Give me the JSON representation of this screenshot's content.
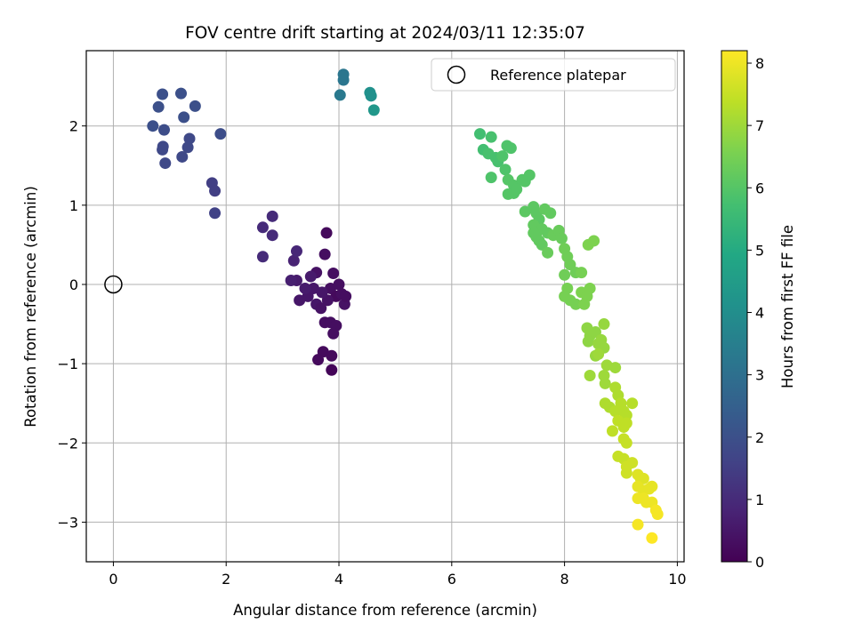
{
  "chart_data": {
    "type": "scatter",
    "title": "FOV centre drift starting at 2024/03/11 12:35:07",
    "xlabel": "Angular distance from reference (arcmin)",
    "ylabel": "Rotation from reference (arcmin)",
    "xlim": [
      -0.48,
      10.12
    ],
    "ylim": [
      -3.5,
      2.95
    ],
    "xticks": [
      0,
      2,
      4,
      6,
      8,
      10
    ],
    "yticks": [
      -3,
      -2,
      -1,
      0,
      1,
      2
    ],
    "grid": true,
    "legend": {
      "placement": "top-right",
      "entries": [
        "Reference platepar"
      ]
    },
    "reference_point": {
      "x": 0,
      "y": 0
    },
    "colorbar": {
      "label": "Hours from first FF file",
      "range": [
        0,
        8.2
      ],
      "ticks": [
        0,
        1,
        2,
        3,
        4,
        5,
        6,
        7,
        8
      ],
      "colormap": "viridis"
    },
    "points": [
      [
        3.78,
        0.65,
        0.2
      ],
      [
        3.75,
        0.38,
        0.3
      ],
      [
        3.9,
        0.14,
        0.3
      ],
      [
        3.6,
        0.15,
        0.4
      ],
      [
        3.85,
        -0.05,
        0.3
      ],
      [
        3.95,
        -0.15,
        0.2
      ],
      [
        4.05,
        -0.12,
        0.3
      ],
      [
        4.1,
        -0.25,
        0.4
      ],
      [
        3.8,
        -0.2,
        0.4
      ],
      [
        3.7,
        -0.1,
        0.5
      ],
      [
        3.55,
        -0.05,
        0.5
      ],
      [
        3.5,
        0.1,
        0.6
      ],
      [
        3.45,
        -0.15,
        0.5
      ],
      [
        3.6,
        -0.25,
        0.5
      ],
      [
        3.68,
        -0.3,
        0.4
      ],
      [
        3.75,
        -0.48,
        0.3
      ],
      [
        3.85,
        -0.48,
        0.3
      ],
      [
        3.95,
        -0.52,
        0.3
      ],
      [
        3.9,
        -0.62,
        0.3
      ],
      [
        3.72,
        -0.85,
        0.2
      ],
      [
        3.63,
        -0.95,
        0.2
      ],
      [
        3.87,
        -0.9,
        0.2
      ],
      [
        3.87,
        -1.08,
        0.1
      ],
      [
        3.3,
        -0.2,
        0.5
      ],
      [
        3.25,
        0.05,
        0.6
      ],
      [
        3.15,
        0.05,
        0.7
      ],
      [
        3.2,
        0.3,
        0.8
      ],
      [
        3.25,
        0.42,
        0.9
      ],
      [
        3.4,
        -0.05,
        0.6
      ],
      [
        4.0,
        0.0,
        0.3
      ],
      [
        4.12,
        -0.15,
        0.3
      ],
      [
        2.65,
        0.35,
        1.0
      ],
      [
        2.65,
        0.72,
        1.0
      ],
      [
        2.82,
        0.62,
        1.0
      ],
      [
        2.82,
        0.86,
        1.0
      ],
      [
        1.75,
        1.28,
        1.5
      ],
      [
        1.8,
        1.18,
        1.5
      ],
      [
        1.8,
        0.9,
        1.6
      ],
      [
        0.7,
        2.0,
        2.0
      ],
      [
        0.8,
        2.24,
        2.0
      ],
      [
        0.87,
        2.4,
        2.0
      ],
      [
        1.2,
        2.41,
        2.0
      ],
      [
        1.45,
        2.25,
        2.0
      ],
      [
        1.25,
        2.11,
        2.0
      ],
      [
        0.9,
        1.95,
        1.9
      ],
      [
        1.9,
        1.9,
        1.9
      ],
      [
        1.35,
        1.84,
        1.8
      ],
      [
        0.88,
        1.74,
        1.8
      ],
      [
        0.87,
        1.7,
        1.8
      ],
      [
        1.32,
        1.73,
        1.8
      ],
      [
        1.22,
        1.61,
        1.8
      ],
      [
        0.92,
        1.53,
        1.8
      ],
      [
        4.08,
        2.65,
        3.2
      ],
      [
        4.08,
        2.58,
        3.2
      ],
      [
        4.02,
        2.39,
        3.3
      ],
      [
        4.55,
        2.42,
        4.1
      ],
      [
        4.57,
        2.38,
        4.1
      ],
      [
        4.62,
        2.2,
        4.3
      ],
      [
        6.5,
        1.9,
        5.7
      ],
      [
        6.56,
        1.7,
        5.7
      ],
      [
        6.65,
        1.65,
        5.8
      ],
      [
        6.7,
        1.86,
        5.8
      ],
      [
        6.78,
        1.6,
        5.8
      ],
      [
        6.82,
        1.55,
        5.8
      ],
      [
        6.9,
        1.62,
        5.9
      ],
      [
        6.95,
        1.45,
        5.9
      ],
      [
        6.7,
        1.35,
        5.9
      ],
      [
        6.98,
        1.75,
        5.9
      ],
      [
        7.05,
        1.72,
        5.9
      ],
      [
        7.0,
        1.32,
        6.0
      ],
      [
        7.1,
        1.25,
        6.0
      ],
      [
        7.1,
        1.15,
        6.0
      ],
      [
        7.0,
        1.14,
        6.0
      ],
      [
        7.15,
        1.2,
        6.0
      ],
      [
        7.3,
        1.3,
        6.0
      ],
      [
        7.38,
        1.38,
        6.0
      ],
      [
        7.25,
        1.32,
        6.0
      ],
      [
        7.3,
        0.92,
        6.1
      ],
      [
        7.45,
        0.98,
        6.1
      ],
      [
        7.5,
        0.9,
        6.1
      ],
      [
        7.55,
        0.82,
        6.1
      ],
      [
        7.45,
        0.75,
        6.2
      ],
      [
        7.6,
        0.7,
        6.2
      ],
      [
        7.65,
        0.95,
        6.2
      ],
      [
        7.75,
        0.9,
        6.2
      ],
      [
        7.5,
        0.6,
        6.2
      ],
      [
        7.55,
        0.55,
        6.2
      ],
      [
        7.7,
        0.65,
        6.2
      ],
      [
        7.6,
        0.5,
        6.2
      ],
      [
        7.8,
        0.62,
        6.3
      ],
      [
        7.9,
        0.68,
        6.3
      ],
      [
        7.95,
        0.58,
        6.3
      ],
      [
        7.7,
        0.4,
        6.3
      ],
      [
        7.45,
        0.65,
        6.2
      ],
      [
        8.0,
        0.45,
        6.4
      ],
      [
        8.05,
        0.35,
        6.4
      ],
      [
        8.0,
        0.12,
        6.4
      ],
      [
        8.1,
        0.25,
        6.4
      ],
      [
        8.2,
        0.15,
        6.4
      ],
      [
        8.3,
        0.15,
        6.5
      ],
      [
        8.05,
        -0.05,
        6.5
      ],
      [
        8.0,
        -0.15,
        6.5
      ],
      [
        8.1,
        -0.2,
        6.5
      ],
      [
        8.2,
        -0.25,
        6.5
      ],
      [
        8.3,
        -0.1,
        6.6
      ],
      [
        8.4,
        -0.15,
        6.6
      ],
      [
        8.35,
        -0.25,
        6.6
      ],
      [
        8.45,
        -0.05,
        6.6
      ],
      [
        8.42,
        0.5,
        6.6
      ],
      [
        8.52,
        0.55,
        6.6
      ],
      [
        8.4,
        -0.55,
        6.8
      ],
      [
        8.45,
        -0.65,
        6.8
      ],
      [
        8.42,
        -0.72,
        6.8
      ],
      [
        8.55,
        -0.6,
        6.8
      ],
      [
        8.6,
        -0.75,
        6.9
      ],
      [
        8.7,
        -0.5,
        6.9
      ],
      [
        8.65,
        -0.7,
        6.9
      ],
      [
        8.7,
        -0.8,
        6.9
      ],
      [
        8.55,
        -0.9,
        6.9
      ],
      [
        8.6,
        -0.88,
        7.0
      ],
      [
        8.75,
        -1.02,
        7.0
      ],
      [
        8.9,
        -1.05,
        7.0
      ],
      [
        8.45,
        -1.15,
        7.0
      ],
      [
        8.7,
        -1.15,
        7.0
      ],
      [
        8.72,
        -1.25,
        7.0
      ],
      [
        8.9,
        -1.3,
        7.2
      ],
      [
        8.95,
        -1.4,
        7.2
      ],
      [
        8.72,
        -1.5,
        7.2
      ],
      [
        8.8,
        -1.55,
        7.2
      ],
      [
        8.9,
        -1.6,
        7.3
      ],
      [
        9.0,
        -1.5,
        7.3
      ],
      [
        9.05,
        -1.6,
        7.3
      ],
      [
        9.2,
        -1.5,
        7.3
      ],
      [
        9.1,
        -1.65,
        7.3
      ],
      [
        8.95,
        -1.72,
        7.4
      ],
      [
        9.05,
        -1.8,
        7.4
      ],
      [
        8.85,
        -1.85,
        7.4
      ],
      [
        9.1,
        -1.75,
        7.4
      ],
      [
        9.05,
        -1.95,
        7.5
      ],
      [
        9.1,
        -2.0,
        7.5
      ],
      [
        9.05,
        -2.2,
        7.5
      ],
      [
        8.95,
        -2.17,
        7.5
      ],
      [
        9.1,
        -2.3,
        7.6
      ],
      [
        9.2,
        -2.25,
        7.6
      ],
      [
        9.1,
        -2.38,
        7.6
      ],
      [
        9.3,
        -2.4,
        7.8
      ],
      [
        9.35,
        -2.45,
        7.8
      ],
      [
        9.4,
        -2.45,
        7.8
      ],
      [
        9.4,
        -2.6,
        7.9
      ],
      [
        9.3,
        -2.55,
        7.9
      ],
      [
        9.5,
        -2.58,
        7.9
      ],
      [
        9.55,
        -2.55,
        7.9
      ],
      [
        9.4,
        -2.7,
        8.0
      ],
      [
        9.3,
        -2.7,
        8.0
      ],
      [
        9.45,
        -2.75,
        8.0
      ],
      [
        9.55,
        -2.75,
        8.0
      ],
      [
        9.62,
        -2.85,
        8.1
      ],
      [
        9.65,
        -2.9,
        8.1
      ],
      [
        9.3,
        -3.03,
        8.1
      ],
      [
        9.55,
        -3.2,
        8.2
      ]
    ]
  }
}
